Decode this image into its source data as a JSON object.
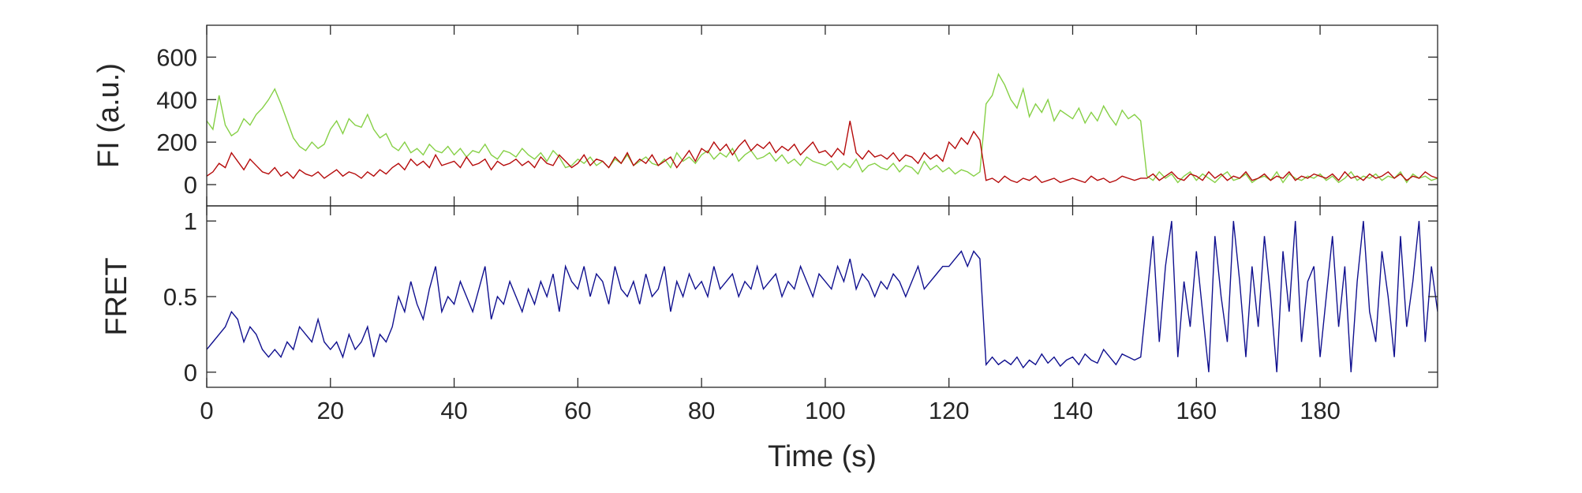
{
  "chart_data": [
    {
      "type": "line",
      "ylabel": "FI (a.u.)",
      "xlim": [
        0,
        199
      ],
      "ylim": [
        -100,
        750
      ],
      "yticks": [
        0,
        200,
        400,
        600
      ],
      "x": [
        0,
        1,
        2,
        3,
        4,
        5,
        6,
        7,
        8,
        9,
        10,
        11,
        12,
        13,
        14,
        15,
        16,
        17,
        18,
        19,
        20,
        21,
        22,
        23,
        24,
        25,
        26,
        27,
        28,
        29,
        30,
        31,
        32,
        33,
        34,
        35,
        36,
        37,
        38,
        39,
        40,
        41,
        42,
        43,
        44,
        45,
        46,
        47,
        48,
        49,
        50,
        51,
        52,
        53,
        54,
        55,
        56,
        57,
        58,
        59,
        60,
        61,
        62,
        63,
        64,
        65,
        66,
        67,
        68,
        69,
        70,
        71,
        72,
        73,
        74,
        75,
        76,
        77,
        78,
        79,
        80,
        81,
        82,
        83,
        84,
        85,
        86,
        87,
        88,
        89,
        90,
        91,
        92,
        93,
        94,
        95,
        96,
        97,
        98,
        99,
        100,
        101,
        102,
        103,
        104,
        105,
        106,
        107,
        108,
        109,
        110,
        111,
        112,
        113,
        114,
        115,
        116,
        117,
        118,
        119,
        120,
        121,
        122,
        123,
        124,
        125,
        126,
        127,
        128,
        129,
        130,
        131,
        132,
        133,
        134,
        135,
        136,
        137,
        138,
        139,
        140,
        141,
        142,
        143,
        144,
        145,
        146,
        147,
        148,
        149,
        150,
        151,
        152,
        153,
        154,
        155,
        156,
        157,
        158,
        159,
        160,
        161,
        162,
        163,
        164,
        165,
        166,
        167,
        168,
        169,
        170,
        171,
        172,
        173,
        174,
        175,
        176,
        177,
        178,
        179,
        180,
        181,
        182,
        183,
        184,
        185,
        186,
        187,
        188,
        189,
        190,
        191,
        192,
        193,
        194,
        195,
        196,
        197,
        198,
        199
      ],
      "series": [
        {
          "color": "#86d046",
          "values": [
            300,
            260,
            420,
            280,
            230,
            250,
            310,
            280,
            330,
            360,
            400,
            450,
            380,
            300,
            220,
            180,
            160,
            200,
            170,
            190,
            260,
            300,
            240,
            310,
            280,
            270,
            330,
            260,
            220,
            240,
            180,
            160,
            200,
            150,
            170,
            140,
            190,
            160,
            150,
            180,
            140,
            170,
            130,
            160,
            150,
            190,
            140,
            120,
            160,
            150,
            130,
            170,
            140,
            120,
            150,
            110,
            160,
            130,
            80,
            90,
            120,
            100,
            130,
            90,
            110,
            80,
            120,
            100,
            140,
            90,
            110,
            130,
            100,
            90,
            120,
            80,
            150,
            110,
            130,
            100,
            140,
            160,
            120,
            150,
            130,
            170,
            110,
            140,
            160,
            120,
            130,
            150,
            110,
            140,
            100,
            120,
            90,
            130,
            110,
            100,
            90,
            110,
            70,
            100,
            80,
            120,
            60,
            90,
            100,
            80,
            70,
            100,
            60,
            90,
            80,
            50,
            110,
            70,
            90,
            60,
            80,
            50,
            70,
            60,
            40,
            60,
            380,
            420,
            520,
            470,
            400,
            360,
            450,
            320,
            380,
            340,
            400,
            300,
            350,
            330,
            310,
            360,
            290,
            340,
            300,
            370,
            320,
            280,
            350,
            310,
            330,
            300,
            40,
            20,
            60,
            30,
            50,
            10,
            40,
            60,
            20,
            50,
            30,
            10,
            40,
            60,
            20,
            30,
            50,
            10,
            30,
            40,
            20,
            60,
            10,
            50,
            30,
            20,
            40,
            30,
            50,
            20,
            40,
            10,
            30,
            60,
            20,
            40,
            30,
            50,
            20,
            40,
            30,
            60,
            10,
            50,
            30,
            40,
            20,
            30
          ]
        },
        {
          "color": "#b50b0b",
          "values": [
            40,
            60,
            100,
            80,
            150,
            110,
            70,
            120,
            90,
            60,
            50,
            80,
            40,
            60,
            30,
            70,
            50,
            40,
            60,
            30,
            50,
            70,
            40,
            60,
            50,
            30,
            60,
            40,
            70,
            50,
            80,
            100,
            70,
            120,
            90,
            110,
            80,
            140,
            90,
            100,
            110,
            80,
            130,
            90,
            100,
            120,
            70,
            110,
            90,
            100,
            120,
            90,
            110,
            80,
            130,
            100,
            90,
            140,
            110,
            80,
            100,
            140,
            90,
            120,
            110,
            80,
            130,
            100,
            150,
            90,
            120,
            100,
            140,
            90,
            110,
            130,
            80,
            120,
            160,
            110,
            170,
            150,
            200,
            160,
            190,
            140,
            180,
            210,
            160,
            190,
            170,
            200,
            150,
            180,
            160,
            190,
            140,
            170,
            200,
            150,
            160,
            130,
            170,
            140,
            300,
            150,
            120,
            160,
            130,
            140,
            120,
            150,
            110,
            140,
            130,
            100,
            150,
            120,
            140,
            110,
            200,
            170,
            220,
            190,
            250,
            210,
            20,
            30,
            10,
            40,
            20,
            10,
            30,
            20,
            40,
            10,
            20,
            30,
            10,
            20,
            30,
            20,
            10,
            40,
            20,
            30,
            10,
            20,
            40,
            30,
            20,
            30,
            30,
            50,
            20,
            40,
            60,
            30,
            20,
            50,
            40,
            20,
            60,
            30,
            50,
            20,
            40,
            30,
            60,
            20,
            30,
            50,
            20,
            40,
            30,
            60,
            20,
            40,
            30,
            50,
            40,
            30,
            50,
            20,
            60,
            30,
            40,
            20,
            50,
            30,
            40,
            60,
            30,
            50,
            20,
            40,
            30,
            60,
            40,
            30
          ]
        }
      ]
    },
    {
      "type": "line",
      "ylabel": "FRET",
      "xlabel": "Time (s)",
      "xlim": [
        0,
        199
      ],
      "ylim": [
        -0.1,
        1.1
      ],
      "yticks": [
        0,
        0.5,
        1
      ],
      "xticks": [
        0,
        20,
        40,
        60,
        80,
        100,
        120,
        140,
        160,
        180
      ],
      "x": [
        0,
        1,
        2,
        3,
        4,
        5,
        6,
        7,
        8,
        9,
        10,
        11,
        12,
        13,
        14,
        15,
        16,
        17,
        18,
        19,
        20,
        21,
        22,
        23,
        24,
        25,
        26,
        27,
        28,
        29,
        30,
        31,
        32,
        33,
        34,
        35,
        36,
        37,
        38,
        39,
        40,
        41,
        42,
        43,
        44,
        45,
        46,
        47,
        48,
        49,
        50,
        51,
        52,
        53,
        54,
        55,
        56,
        57,
        58,
        59,
        60,
        61,
        62,
        63,
        64,
        65,
        66,
        67,
        68,
        69,
        70,
        71,
        72,
        73,
        74,
        75,
        76,
        77,
        78,
        79,
        80,
        81,
        82,
        83,
        84,
        85,
        86,
        87,
        88,
        89,
        90,
        91,
        92,
        93,
        94,
        95,
        96,
        97,
        98,
        99,
        100,
        101,
        102,
        103,
        104,
        105,
        106,
        107,
        108,
        109,
        110,
        111,
        112,
        113,
        114,
        115,
        116,
        117,
        118,
        119,
        120,
        121,
        122,
        123,
        124,
        125,
        126,
        127,
        128,
        129,
        130,
        131,
        132,
        133,
        134,
        135,
        136,
        137,
        138,
        139,
        140,
        141,
        142,
        143,
        144,
        145,
        146,
        147,
        148,
        149,
        150,
        151,
        152,
        153,
        154,
        155,
        156,
        157,
        158,
        159,
        160,
        161,
        162,
        163,
        164,
        165,
        166,
        167,
        168,
        169,
        170,
        171,
        172,
        173,
        174,
        175,
        176,
        177,
        178,
        179,
        180,
        181,
        182,
        183,
        184,
        185,
        186,
        187,
        188,
        189,
        190,
        191,
        192,
        193,
        194,
        195,
        196,
        197,
        198,
        199
      ],
      "series": [
        {
          "color": "#10108f",
          "values": [
            0.15,
            0.2,
            0.25,
            0.3,
            0.4,
            0.35,
            0.2,
            0.3,
            0.25,
            0.15,
            0.1,
            0.15,
            0.1,
            0.2,
            0.15,
            0.3,
            0.25,
            0.2,
            0.35,
            0.2,
            0.15,
            0.2,
            0.1,
            0.25,
            0.15,
            0.2,
            0.3,
            0.1,
            0.25,
            0.2,
            0.3,
            0.5,
            0.4,
            0.6,
            0.45,
            0.35,
            0.55,
            0.7,
            0.4,
            0.5,
            0.45,
            0.6,
            0.5,
            0.4,
            0.55,
            0.7,
            0.35,
            0.5,
            0.45,
            0.6,
            0.5,
            0.4,
            0.55,
            0.45,
            0.6,
            0.5,
            0.65,
            0.4,
            0.7,
            0.6,
            0.55,
            0.7,
            0.5,
            0.65,
            0.6,
            0.45,
            0.7,
            0.55,
            0.5,
            0.6,
            0.45,
            0.65,
            0.5,
            0.55,
            0.7,
            0.4,
            0.6,
            0.5,
            0.65,
            0.55,
            0.6,
            0.5,
            0.7,
            0.55,
            0.6,
            0.65,
            0.5,
            0.6,
            0.55,
            0.7,
            0.55,
            0.6,
            0.65,
            0.5,
            0.6,
            0.55,
            0.7,
            0.6,
            0.5,
            0.65,
            0.6,
            0.55,
            0.7,
            0.6,
            0.75,
            0.55,
            0.65,
            0.6,
            0.5,
            0.6,
            0.55,
            0.65,
            0.6,
            0.5,
            0.6,
            0.7,
            0.55,
            0.6,
            0.65,
            0.7,
            0.7,
            0.75,
            0.8,
            0.7,
            0.8,
            0.75,
            0.05,
            0.1,
            0.05,
            0.08,
            0.05,
            0.1,
            0.03,
            0.08,
            0.05,
            0.12,
            0.06,
            0.1,
            0.04,
            0.08,
            0.1,
            0.05,
            0.12,
            0.08,
            0.06,
            0.15,
            0.1,
            0.05,
            0.12,
            0.1,
            0.08,
            0.1,
            0.5,
            0.9,
            0.2,
            0.7,
            1.0,
            0.1,
            0.6,
            0.3,
            0.8,
            0.4,
            0.0,
            0.9,
            0.5,
            0.2,
            1.0,
            0.6,
            0.1,
            0.7,
            0.3,
            0.9,
            0.5,
            0.0,
            0.8,
            0.4,
            1.0,
            0.2,
            0.6,
            0.7,
            0.1,
            0.5,
            0.9,
            0.3,
            0.7,
            0.0,
            0.6,
            1.0,
            0.4,
            0.2,
            0.8,
            0.5,
            0.1,
            0.9,
            0.3,
            0.6,
            1.0,
            0.2,
            0.7,
            0.4
          ]
        }
      ]
    }
  ]
}
